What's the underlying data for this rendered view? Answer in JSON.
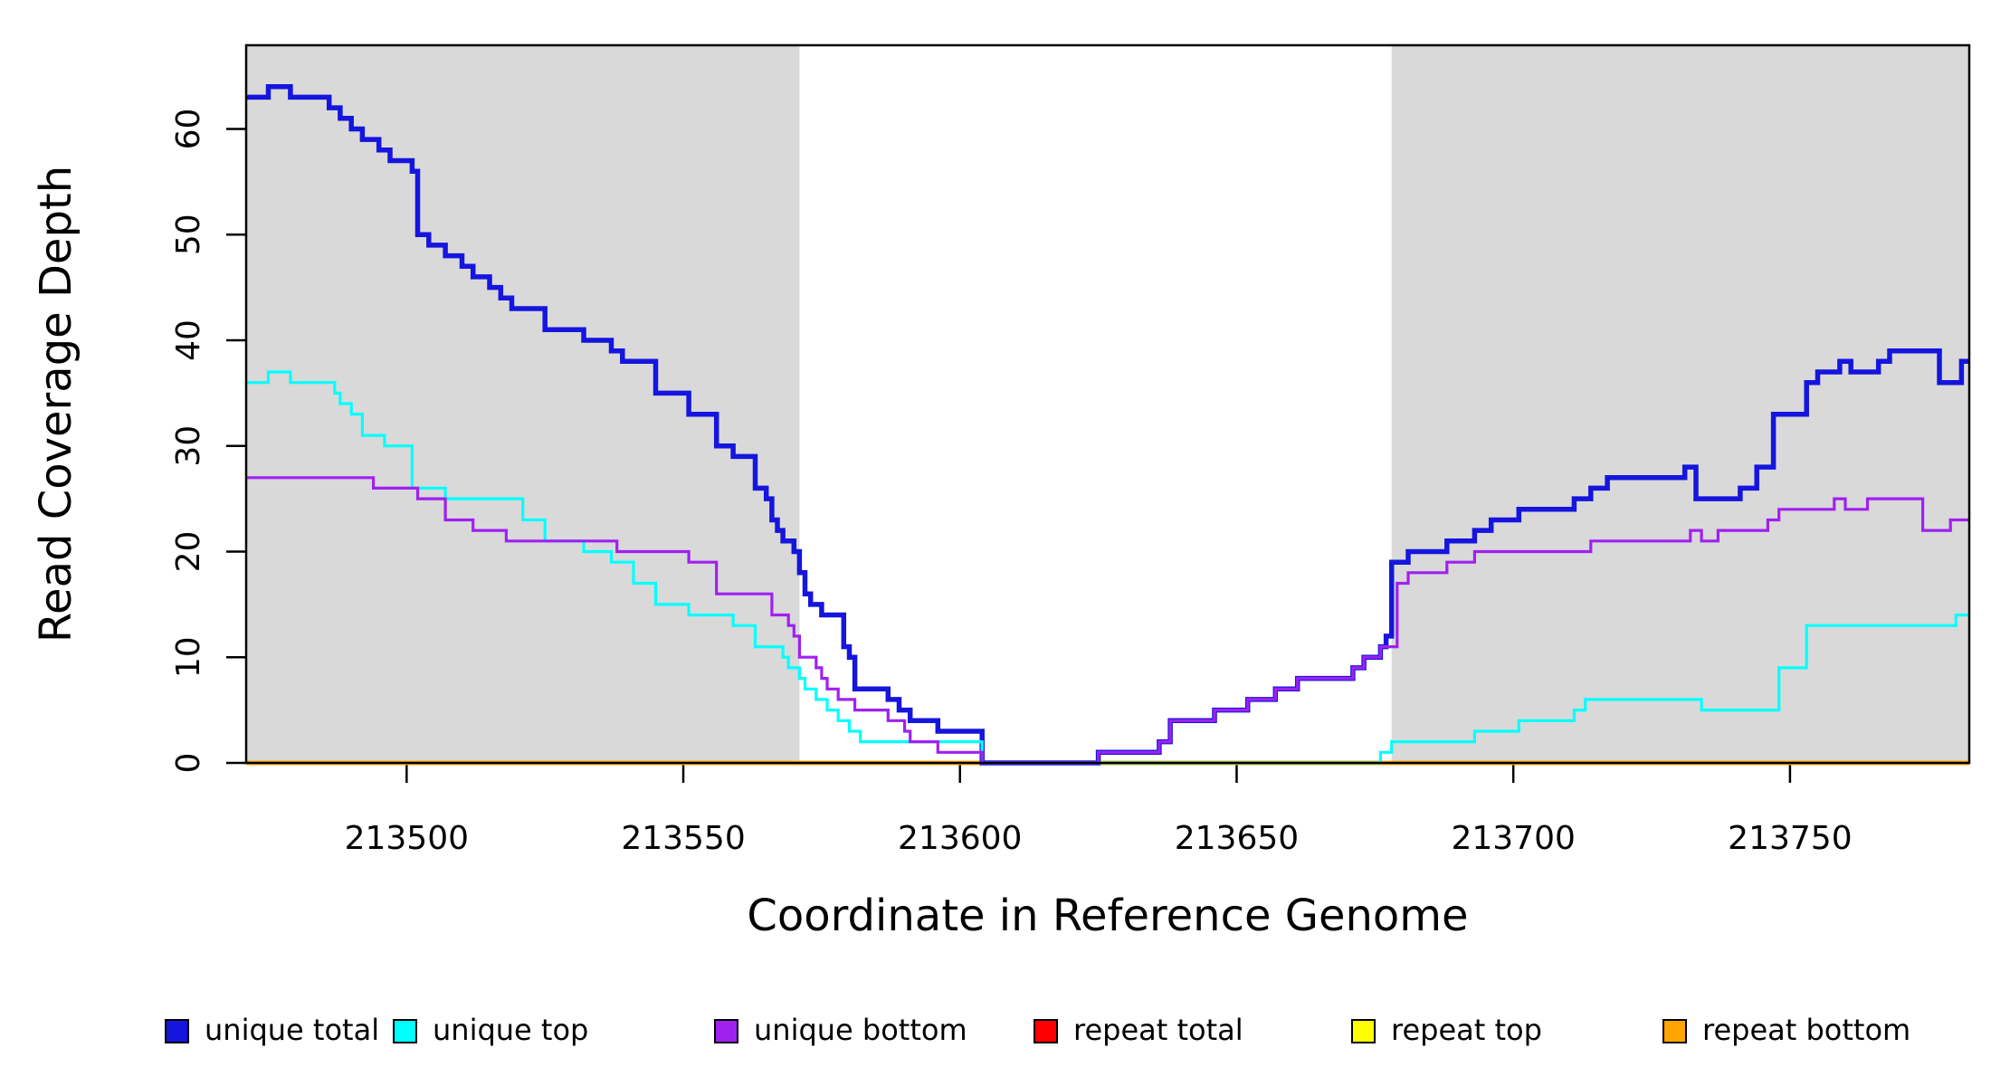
{
  "chart_data": {
    "type": "line",
    "subtype": "step-after",
    "title": "",
    "xlabel": "Coordinate in Reference Genome",
    "ylabel": "Read Coverage Depth",
    "xlim": [
      213471,
      213782.4
    ],
    "ylim": [
      0,
      67.92
    ],
    "x_ticks": [
      213500,
      213550,
      213600,
      213650,
      213700,
      213750
    ],
    "y_ticks": [
      0,
      10,
      20,
      30,
      40,
      50,
      60
    ],
    "grid": "off",
    "legend_position": "bottom",
    "background_color": "#FFFFFF",
    "band_color": "#D9D9D9",
    "axis_color": "#000000",
    "shaded_regions": [
      {
        "name": "left-unique-flank",
        "x0": 213471,
        "x1": 213571
      },
      {
        "name": "right-unique-flank",
        "x0": 213678,
        "x1": 213782.4
      }
    ],
    "series": [
      {
        "name": "unique total",
        "color": "#1515DE",
        "line_width": 5.5,
        "points": [
          [
            213471,
            63
          ],
          [
            213475,
            64
          ],
          [
            213479,
            63
          ],
          [
            213486,
            62
          ],
          [
            213488,
            61
          ],
          [
            213490,
            60
          ],
          [
            213492,
            59
          ],
          [
            213495,
            58
          ],
          [
            213497,
            57
          ],
          [
            213501,
            56
          ],
          [
            213502,
            50
          ],
          [
            213504,
            49
          ],
          [
            213507,
            48
          ],
          [
            213510,
            47
          ],
          [
            213512,
            46
          ],
          [
            213515,
            45
          ],
          [
            213517,
            44
          ],
          [
            213519,
            43
          ],
          [
            213525,
            41
          ],
          [
            213532,
            40
          ],
          [
            213537,
            39
          ],
          [
            213539,
            38
          ],
          [
            213545,
            35
          ],
          [
            213551,
            33
          ],
          [
            213556,
            30
          ],
          [
            213559,
            29
          ],
          [
            213563,
            26
          ],
          [
            213565,
            25
          ],
          [
            213566,
            23
          ],
          [
            213567,
            22
          ],
          [
            213568,
            21
          ],
          [
            213570,
            20
          ],
          [
            213571,
            18
          ],
          [
            213572,
            16
          ],
          [
            213573,
            15
          ],
          [
            213575,
            14
          ],
          [
            213579,
            11
          ],
          [
            213580,
            10
          ],
          [
            213581,
            7
          ],
          [
            213587,
            6
          ],
          [
            213589,
            5
          ],
          [
            213591,
            4
          ],
          [
            213596,
            3
          ],
          [
            213604,
            0
          ],
          [
            213625,
            1
          ],
          [
            213636,
            2
          ],
          [
            213638,
            4
          ],
          [
            213646,
            5
          ],
          [
            213652,
            6
          ],
          [
            213657,
            7
          ],
          [
            213661,
            8
          ],
          [
            213671,
            9
          ],
          [
            213673,
            10
          ],
          [
            213676,
            11
          ],
          [
            213677,
            12
          ],
          [
            213678,
            19
          ],
          [
            213681,
            20
          ],
          [
            213688,
            21
          ],
          [
            213693,
            22
          ],
          [
            213696,
            23
          ],
          [
            213701,
            24
          ],
          [
            213711,
            25
          ],
          [
            213714,
            26
          ],
          [
            213717,
            27
          ],
          [
            213731,
            28
          ],
          [
            213733,
            25
          ],
          [
            213741,
            26
          ],
          [
            213744,
            28
          ],
          [
            213747,
            33
          ],
          [
            213753,
            36
          ],
          [
            213755,
            37
          ],
          [
            213759,
            38
          ],
          [
            213761,
            37
          ],
          [
            213766,
            38
          ],
          [
            213768,
            39
          ],
          [
            213777,
            36
          ],
          [
            213781,
            38
          ]
        ]
      },
      {
        "name": "unique top",
        "color": "#00FFFF",
        "line_width": 3.2,
        "points": [
          [
            213471,
            36
          ],
          [
            213475,
            37
          ],
          [
            213479,
            36
          ],
          [
            213487,
            35
          ],
          [
            213488,
            34
          ],
          [
            213490,
            33
          ],
          [
            213492,
            31
          ],
          [
            213496,
            30
          ],
          [
            213501,
            26
          ],
          [
            213507,
            25
          ],
          [
            213521,
            23
          ],
          [
            213525,
            21
          ],
          [
            213532,
            20
          ],
          [
            213537,
            19
          ],
          [
            213541,
            17
          ],
          [
            213545,
            15
          ],
          [
            213551,
            14
          ],
          [
            213559,
            13
          ],
          [
            213563,
            11
          ],
          [
            213568,
            10
          ],
          [
            213569,
            9
          ],
          [
            213571,
            8
          ],
          [
            213572,
            7
          ],
          [
            213574,
            6
          ],
          [
            213576,
            5
          ],
          [
            213578,
            4
          ],
          [
            213580,
            3
          ],
          [
            213582,
            2
          ],
          [
            213604,
            0
          ],
          [
            213676,
            1
          ],
          [
            213678,
            2
          ],
          [
            213693,
            3
          ],
          [
            213701,
            4
          ],
          [
            213711,
            5
          ],
          [
            213713,
            6
          ],
          [
            213734,
            5
          ],
          [
            213748,
            9
          ],
          [
            213753,
            13
          ],
          [
            213780,
            14
          ]
        ]
      },
      {
        "name": "unique bottom",
        "color": "#A020F0",
        "line_width": 3.2,
        "points": [
          [
            213471,
            27
          ],
          [
            213494,
            26
          ],
          [
            213502,
            25
          ],
          [
            213507,
            23
          ],
          [
            213512,
            22
          ],
          [
            213518,
            21
          ],
          [
            213538,
            20
          ],
          [
            213551,
            19
          ],
          [
            213556,
            16
          ],
          [
            213566,
            14
          ],
          [
            213569,
            13
          ],
          [
            213570,
            12
          ],
          [
            213571,
            10
          ],
          [
            213574,
            9
          ],
          [
            213575,
            8
          ],
          [
            213576,
            7
          ],
          [
            213578,
            6
          ],
          [
            213581,
            5
          ],
          [
            213587,
            4
          ],
          [
            213590,
            3
          ],
          [
            213591,
            2
          ],
          [
            213596,
            1
          ],
          [
            213604,
            0
          ],
          [
            213625,
            1
          ],
          [
            213636,
            2
          ],
          [
            213638,
            4
          ],
          [
            213646,
            5
          ],
          [
            213652,
            6
          ],
          [
            213657,
            7
          ],
          [
            213661,
            8
          ],
          [
            213671,
            9
          ],
          [
            213673,
            10
          ],
          [
            213676,
            11
          ],
          [
            213679,
            17
          ],
          [
            213681,
            18
          ],
          [
            213688,
            19
          ],
          [
            213693,
            20
          ],
          [
            213714,
            21
          ],
          [
            213732,
            22
          ],
          [
            213734,
            21
          ],
          [
            213737,
            22
          ],
          [
            213746,
            23
          ],
          [
            213748,
            24
          ],
          [
            213758,
            25
          ],
          [
            213760,
            24
          ],
          [
            213764,
            25
          ],
          [
            213774,
            22
          ],
          [
            213779,
            23
          ]
        ]
      },
      {
        "name": "repeat total",
        "color": "#FF0000",
        "line_width": 4.5,
        "points": [
          [
            213471,
            0
          ]
        ]
      },
      {
        "name": "repeat top",
        "color": "#FFFF00",
        "line_width": 4.5,
        "points": [
          [
            213471,
            0
          ]
        ]
      },
      {
        "name": "repeat bottom",
        "color": "#FFA500",
        "line_width": 4.5,
        "points": [
          [
            213471,
            0
          ]
        ]
      }
    ],
    "draw_order": [
      3,
      4,
      5,
      0,
      1,
      2
    ]
  }
}
